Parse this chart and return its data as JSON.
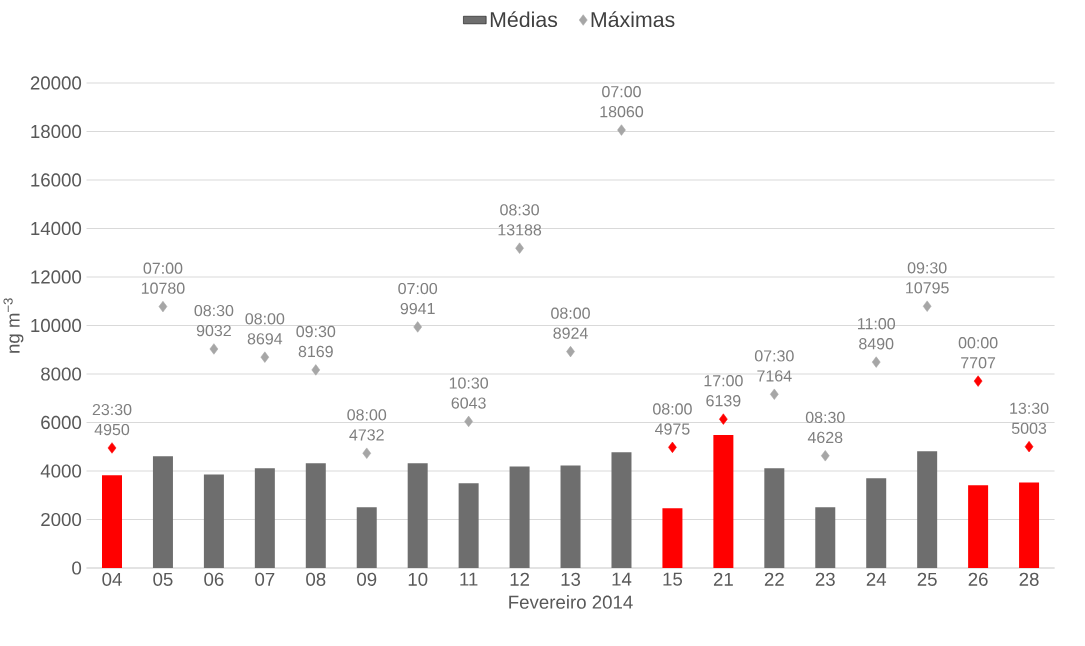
{
  "chart_data": {
    "type": "bar",
    "xlabel": "Fevereiro 2014",
    "ylabel": "ng m$^{−3}$",
    "categories": [
      "04",
      "05",
      "06",
      "07",
      "08",
      "09",
      "10",
      "11",
      "12",
      "13",
      "14",
      "15",
      "21",
      "22",
      "23",
      "24",
      "25",
      "26",
      "28"
    ],
    "series": [
      {
        "name": "Médias",
        "color": "#6e6e6e",
        "colors": [
          "#ff0000",
          "#6e6e6e",
          "#6e6e6e",
          "#6e6e6e",
          "#6e6e6e",
          "#6e6e6e",
          "#6e6e6e",
          "#6e6e6e",
          "#6e6e6e",
          "#6e6e6e",
          "#6e6e6e",
          "#ff0000",
          "#ff0000",
          "#6e6e6e",
          "#6e6e6e",
          "#6e6e6e",
          "#6e6e6e",
          "#ff0000",
          "#ff0000"
        ],
        "values": [
          3820,
          4610,
          3860,
          4110,
          4320,
          2500,
          4320,
          3490,
          4190,
          4230,
          4770,
          2460,
          5480,
          4110,
          2500,
          3700,
          4810,
          3410,
          3530
        ]
      },
      {
        "name": "Máximas",
        "type": "scatter",
        "marker": "diamond",
        "color": "#a6a6a6",
        "colors": [
          "#ff0000",
          "#a6a6a6",
          "#a6a6a6",
          "#a6a6a6",
          "#a6a6a6",
          "#a6a6a6",
          "#a6a6a6",
          "#a6a6a6",
          "#a6a6a6",
          "#a6a6a6",
          "#a6a6a6",
          "#ff0000",
          "#ff0000",
          "#a6a6a6",
          "#a6a6a6",
          "#a6a6a6",
          "#a6a6a6",
          "#ff0000",
          "#ff0000"
        ],
        "values": [
          4950,
          10780,
          9032,
          8694,
          8169,
          4732,
          9941,
          6043,
          13188,
          8924,
          18060,
          4975,
          6139,
          7164,
          4628,
          8490,
          10795,
          7707,
          5003
        ],
        "value_labels": [
          "23:30 4950",
          "07:00 10780",
          "08:30 9032",
          "08:00 8694",
          "09:30 8169",
          "08:00 4732",
          "07:00 9941",
          "10:30 6043",
          "08:30 13188",
          "08:00 8924",
          "07:00 18060",
          "08:00 4975",
          "17:00 6139",
          "07:30 7164",
          "08:30 4628",
          "11:00 8490",
          "09:30 10795",
          "00:00 7707",
          "13:30 5003"
        ]
      }
    ],
    "ylim": [
      0,
      20000
    ],
    "yticks": [
      0,
      2000,
      4000,
      6000,
      8000,
      10000,
      12000,
      14000,
      16000,
      18000,
      20000
    ],
    "grid": "y",
    "legend": "top"
  }
}
